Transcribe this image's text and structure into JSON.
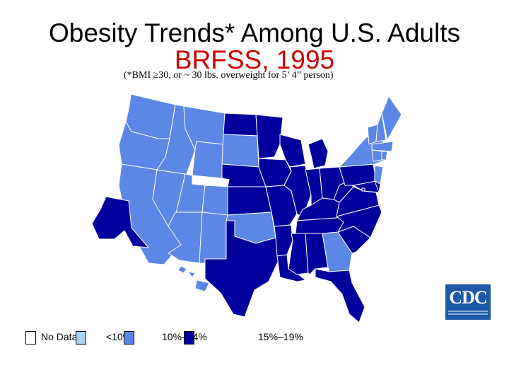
{
  "title": "Obesity Trends* Among U.S. Adults",
  "subtitle": "BRFSS, 1995",
  "note": "(*BMI ≥30, or ~ 30 lbs. overweight for 5’ 4” person)",
  "colors": {
    "no_data": "#ffffff",
    "lt10": "#aad0f5",
    "p10_14": "#5b88e6",
    "p15_19": "#00009c",
    "border": "#ffffff"
  },
  "legend": [
    {
      "label": "No Data",
      "color": "#ffffff"
    },
    {
      "label": "<10%",
      "color": "#aad0f5"
    },
    {
      "label": "10%–14%",
      "color": "#5b88e6"
    },
    {
      "label": "15%–19%",
      "color": "#00009c"
    }
  ],
  "logo_text": "CDC",
  "state_categories": {
    "WA": "10-14",
    "OR": "10-14",
    "CA": "10-14",
    "NV": "10-14",
    "ID": "10-14",
    "MT": "10-14",
    "WY": "10-14",
    "UT": "10-14",
    "AZ": "10-14",
    "CO": "10-14",
    "NM": "10-14",
    "SD": "10-14",
    "OK": "10-14",
    "GA": "10-14",
    "NY": "10-14",
    "VT": "10-14",
    "NH": "10-14",
    "ME": "10-14",
    "MA": "10-14",
    "CT": "10-14",
    "RI": "10-14",
    "NJ": "10-14",
    "HI": "10-14",
    "ND": "15-19",
    "NE": "15-19",
    "KS": "15-19",
    "TX": "15-19",
    "MN": "15-19",
    "IA": "15-19",
    "MO": "15-19",
    "AR": "15-19",
    "LA": "15-19",
    "WI": "15-19",
    "IL": "15-19",
    "MI": "15-19",
    "IN": "15-19",
    "OH": "15-19",
    "KY": "15-19",
    "TN": "15-19",
    "MS": "15-19",
    "AL": "15-19",
    "FL": "15-19",
    "SC": "15-19",
    "NC": "15-19",
    "VA": "15-19",
    "WV": "15-19",
    "PA": "15-19",
    "MD": "15-19",
    "DE": "15-19",
    "DC": "15-19",
    "AK": "15-19"
  }
}
